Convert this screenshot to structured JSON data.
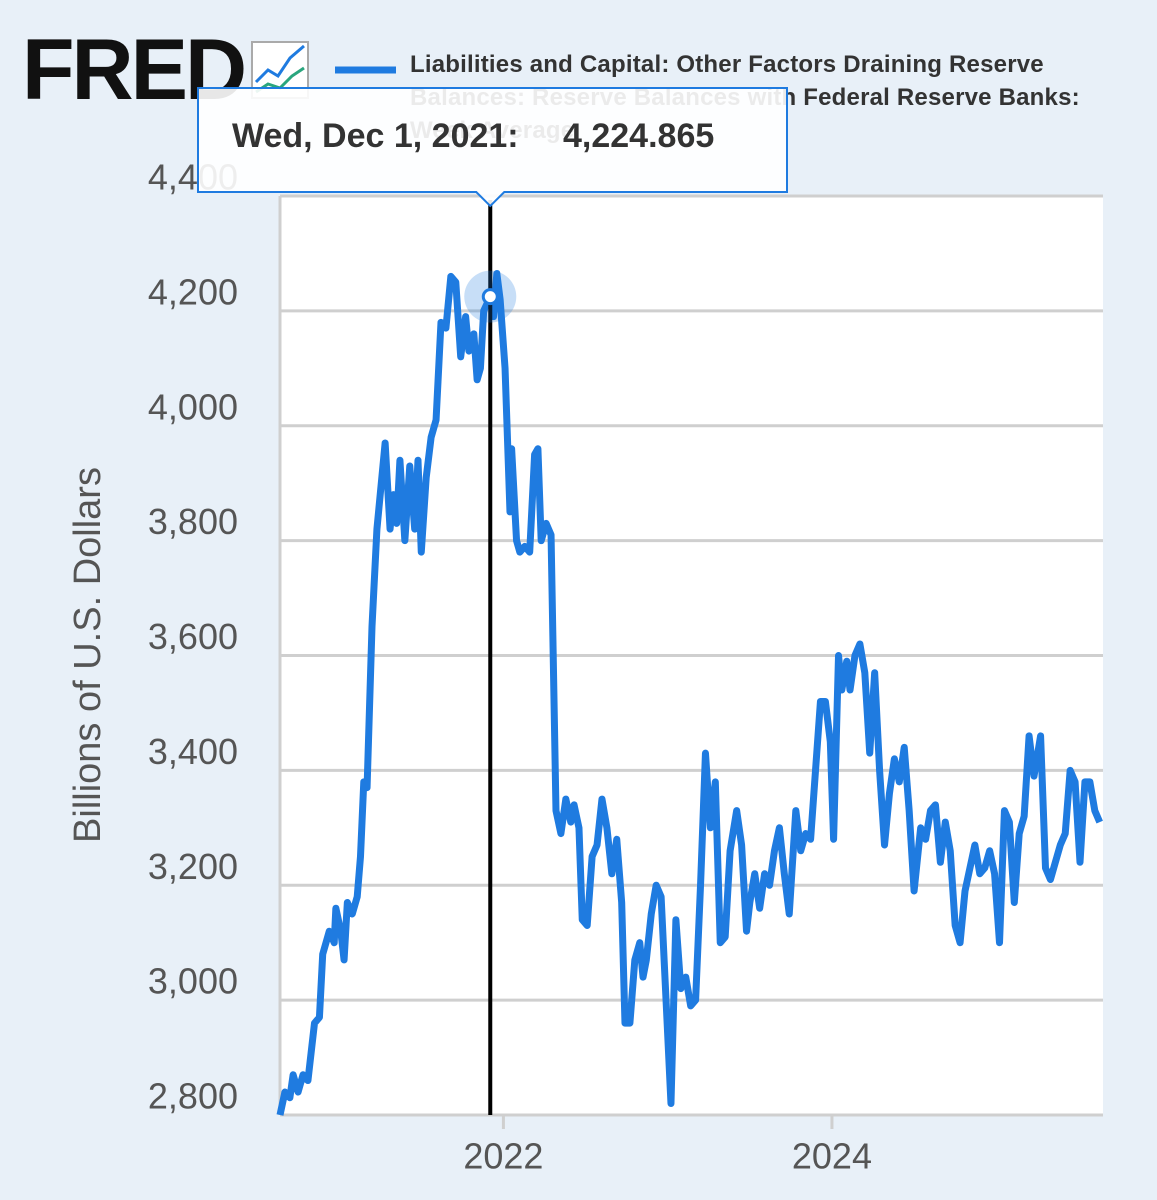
{
  "chart_data": {
    "type": "line",
    "logo": "FRED",
    "y_label": "Billions of U.S. Dollars",
    "series": [
      {
        "name": "Liabilities and Capital: Other Factors Draining Reserve Balances: Reserve Balances with Federal Reserve Banks: Week Average",
        "color": "#1f7be0",
        "values": [
          2800,
          2840,
          2830,
          2870,
          2840,
          2870,
          2860,
          2960,
          2970,
          3080,
          3120,
          3100,
          3160,
          3120,
          3070,
          3170,
          3150,
          3180,
          3250,
          3380,
          3370,
          3650,
          3820,
          3970,
          3820,
          3880,
          3830,
          3940,
          3800,
          3930,
          3820,
          3940,
          3780,
          3910,
          3980,
          4010,
          4180,
          4170,
          4260,
          4250,
          4120,
          4190,
          4130,
          4160,
          4080,
          4100,
          4200,
          4224.865,
          4190,
          4265,
          4220,
          4100,
          3850,
          3960,
          3800,
          3780,
          3790,
          3780,
          3950,
          3960,
          3800,
          3830,
          3810,
          3330,
          3290,
          3350,
          3310,
          3340,
          3300,
          3140,
          3130,
          3250,
          3270,
          3350,
          3300,
          3220,
          3280,
          3170,
          2960,
          2960,
          3070,
          3100,
          3040,
          3070,
          3150,
          3200,
          3180,
          3000,
          2820,
          3140,
          3020,
          3040,
          2990,
          3000,
          3200,
          3430,
          3300,
          3380,
          3100,
          3110,
          3260,
          3330,
          3270,
          3120,
          3170,
          3220,
          3160,
          3220,
          3200,
          3260,
          3300,
          3220,
          3150,
          3330,
          3260,
          3290,
          3280,
          3400,
          3520,
          3520,
          3450,
          3280,
          3600,
          3540,
          3590,
          3540,
          3600,
          3620,
          3570,
          3430,
          3570,
          3400,
          3270,
          3360,
          3420,
          3380,
          3440,
          3330,
          3190,
          3300,
          3280,
          3330,
          3340,
          3240,
          3310,
          3260,
          3130,
          3100,
          3190,
          3230,
          3270,
          3220,
          3230,
          3260,
          3220,
          3100,
          3330,
          3310,
          3170,
          3290,
          3320,
          3460,
          3390,
          3460,
          3230,
          3210,
          3240,
          3270,
          3290,
          3400,
          3380,
          3240,
          3380,
          3380,
          3330,
          3310
        ]
      }
    ],
    "x": [
      2020.64,
      2020.67,
      2020.7,
      2020.72,
      2020.75,
      2020.78,
      2020.81,
      2020.85,
      2020.88,
      2020.9,
      2020.94,
      2020.97,
      2020.98,
      2021.01,
      2021.03,
      2021.05,
      2021.08,
      2021.11,
      2021.13,
      2021.15,
      2021.17,
      2021.2,
      2021.23,
      2021.28,
      2021.31,
      2021.33,
      2021.35,
      2021.37,
      2021.4,
      2021.43,
      2021.46,
      2021.48,
      2021.5,
      2021.53,
      2021.56,
      2021.59,
      2021.62,
      2021.65,
      2021.68,
      2021.71,
      2021.74,
      2021.77,
      2021.79,
      2021.82,
      2021.84,
      2021.86,
      2021.88,
      2021.92,
      2021.94,
      2021.96,
      2021.98,
      2022.01,
      2022.04,
      2022.05,
      2022.08,
      2022.1,
      2022.13,
      2022.16,
      2022.19,
      2022.21,
      2022.23,
      2022.26,
      2022.29,
      2022.32,
      2022.35,
      2022.38,
      2022.41,
      2022.43,
      2022.46,
      2022.48,
      2022.51,
      2022.54,
      2022.57,
      2022.6,
      2022.63,
      2022.66,
      2022.69,
      2022.72,
      2022.74,
      2022.77,
      2022.8,
      2022.83,
      2022.85,
      2022.87,
      2022.9,
      2022.93,
      2022.96,
      2022.99,
      2023.02,
      2023.05,
      2023.08,
      2023.11,
      2023.14,
      2023.17,
      2023.2,
      2023.23,
      2023.26,
      2023.29,
      2023.32,
      2023.35,
      2023.38,
      2023.42,
      2023.45,
      2023.48,
      2023.5,
      2023.53,
      2023.56,
      2023.59,
      2023.62,
      2023.65,
      2023.68,
      2023.71,
      2023.74,
      2023.78,
      2023.81,
      2023.84,
      2023.87,
      2023.9,
      2023.93,
      2023.96,
      2023.99,
      2024.01,
      2024.04,
      2024.06,
      2024.09,
      2024.11,
      2024.14,
      2024.17,
      2024.2,
      2024.23,
      2024.26,
      2024.29,
      2024.32,
      2024.35,
      2024.38,
      2024.41,
      2024.44,
      2024.47,
      2024.5,
      2024.54,
      2024.57,
      2024.6,
      2024.63,
      2024.66,
      2024.69,
      2024.72,
      2024.75,
      2024.78,
      2024.81,
      2024.84,
      2024.87,
      2024.9,
      2024.93,
      2024.96,
      2024.99,
      2025.02,
      2025.05,
      2025.08,
      2025.11,
      2025.14,
      2025.17,
      2025.2,
      2025.23,
      2025.27,
      2025.3,
      2025.33,
      2025.36,
      2025.39,
      2025.42,
      2025.45,
      2025.48,
      2025.51,
      2025.54,
      2025.57,
      2025.6,
      2025.63
    ],
    "xlim": [
      2020.64,
      2025.65
    ],
    "xticks": [
      2022,
      2024
    ],
    "ylim": [
      2800,
      4400
    ],
    "yticks": [
      {
        "value": 2800,
        "label": "2,800"
      },
      {
        "value": 3000,
        "label": "3,000"
      },
      {
        "value": 3200,
        "label": "3,200"
      },
      {
        "value": 3400,
        "label": "3,400"
      },
      {
        "value": 3600,
        "label": "3,600"
      },
      {
        "value": 3800,
        "label": "3,800"
      },
      {
        "value": 4000,
        "label": "4,000"
      },
      {
        "value": 4200,
        "label": "4,200"
      },
      {
        "value": 4400,
        "label": "4,400"
      }
    ],
    "grid": true,
    "tooltip": {
      "x": 2021.92,
      "date": "Wed, Dec 1, 2021:",
      "value": 4224.865,
      "value_label": "4,224.865"
    }
  }
}
